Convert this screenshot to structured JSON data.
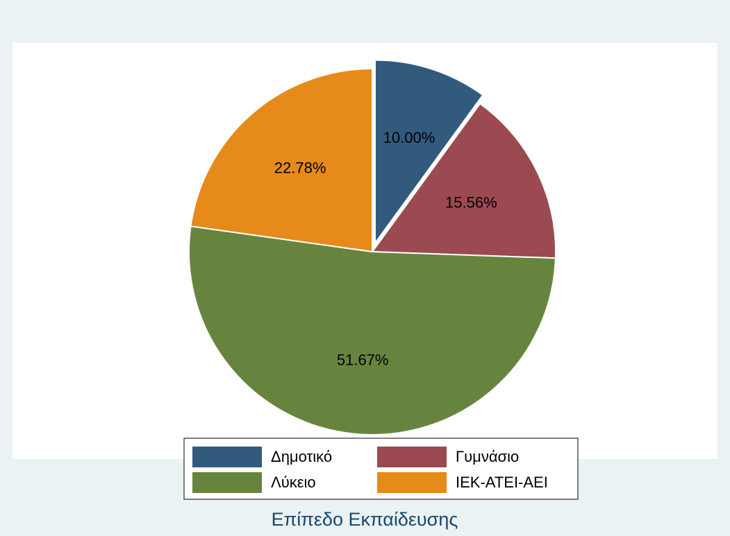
{
  "chart_data": {
    "type": "pie",
    "title": "Επίπεδο Εκπαίδευσης",
    "categories": [
      "Δημοτικό",
      "Γυμνάσιο",
      "Λύκειο",
      "ΙΕΚ-ΑΤΕΙ-ΑΕΙ"
    ],
    "values": [
      10.0,
      15.56,
      51.67,
      22.78
    ],
    "value_labels": [
      "10.00%",
      "15.56%",
      "51.67%",
      "22.78%"
    ],
    "colors": [
      "#325a7d",
      "#9b4a52",
      "#67843f",
      "#e68a1a"
    ]
  }
}
